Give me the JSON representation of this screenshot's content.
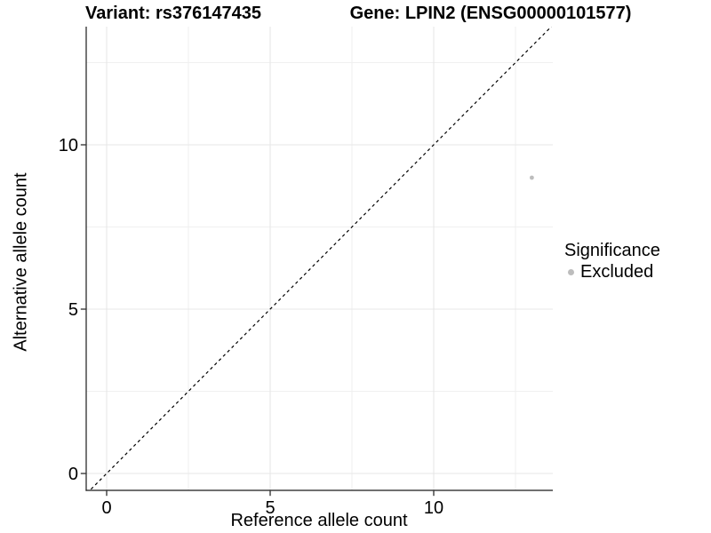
{
  "chart_data": {
    "type": "scatter",
    "titles": [
      "Variant: rs376147435",
      "Gene: LPIN2 (ENSG00000101577)"
    ],
    "xlabel": "Reference allele count",
    "ylabel": "Alternative allele count",
    "x_ticks": [
      0,
      5,
      10
    ],
    "y_ticks": [
      0,
      5,
      10
    ],
    "x_minor_gridlines": [
      2.5,
      7.5,
      12.5
    ],
    "y_minor_gridlines": [
      2.5,
      7.5,
      12.5
    ],
    "xlim": [
      -0.65,
      13.65
    ],
    "ylim": [
      -0.65,
      13.65
    ],
    "grid": true,
    "legend": {
      "title": "Significance",
      "position": "right",
      "items": [
        {
          "label": "Excluded",
          "color": "#bdbdbd"
        }
      ]
    },
    "series": [
      {
        "name": "Excluded",
        "color": "#bdbdbd",
        "points": [
          [
            13,
            9
          ]
        ]
      }
    ],
    "reference_line": {
      "type": "identity y=x",
      "style": "dashed",
      "color": "#000000"
    },
    "colors": {
      "grid_major": "#e7e7e7",
      "grid_minor": "#f0f0f0",
      "axis": "#1a1a1a",
      "point": "#bdbdbd"
    }
  }
}
